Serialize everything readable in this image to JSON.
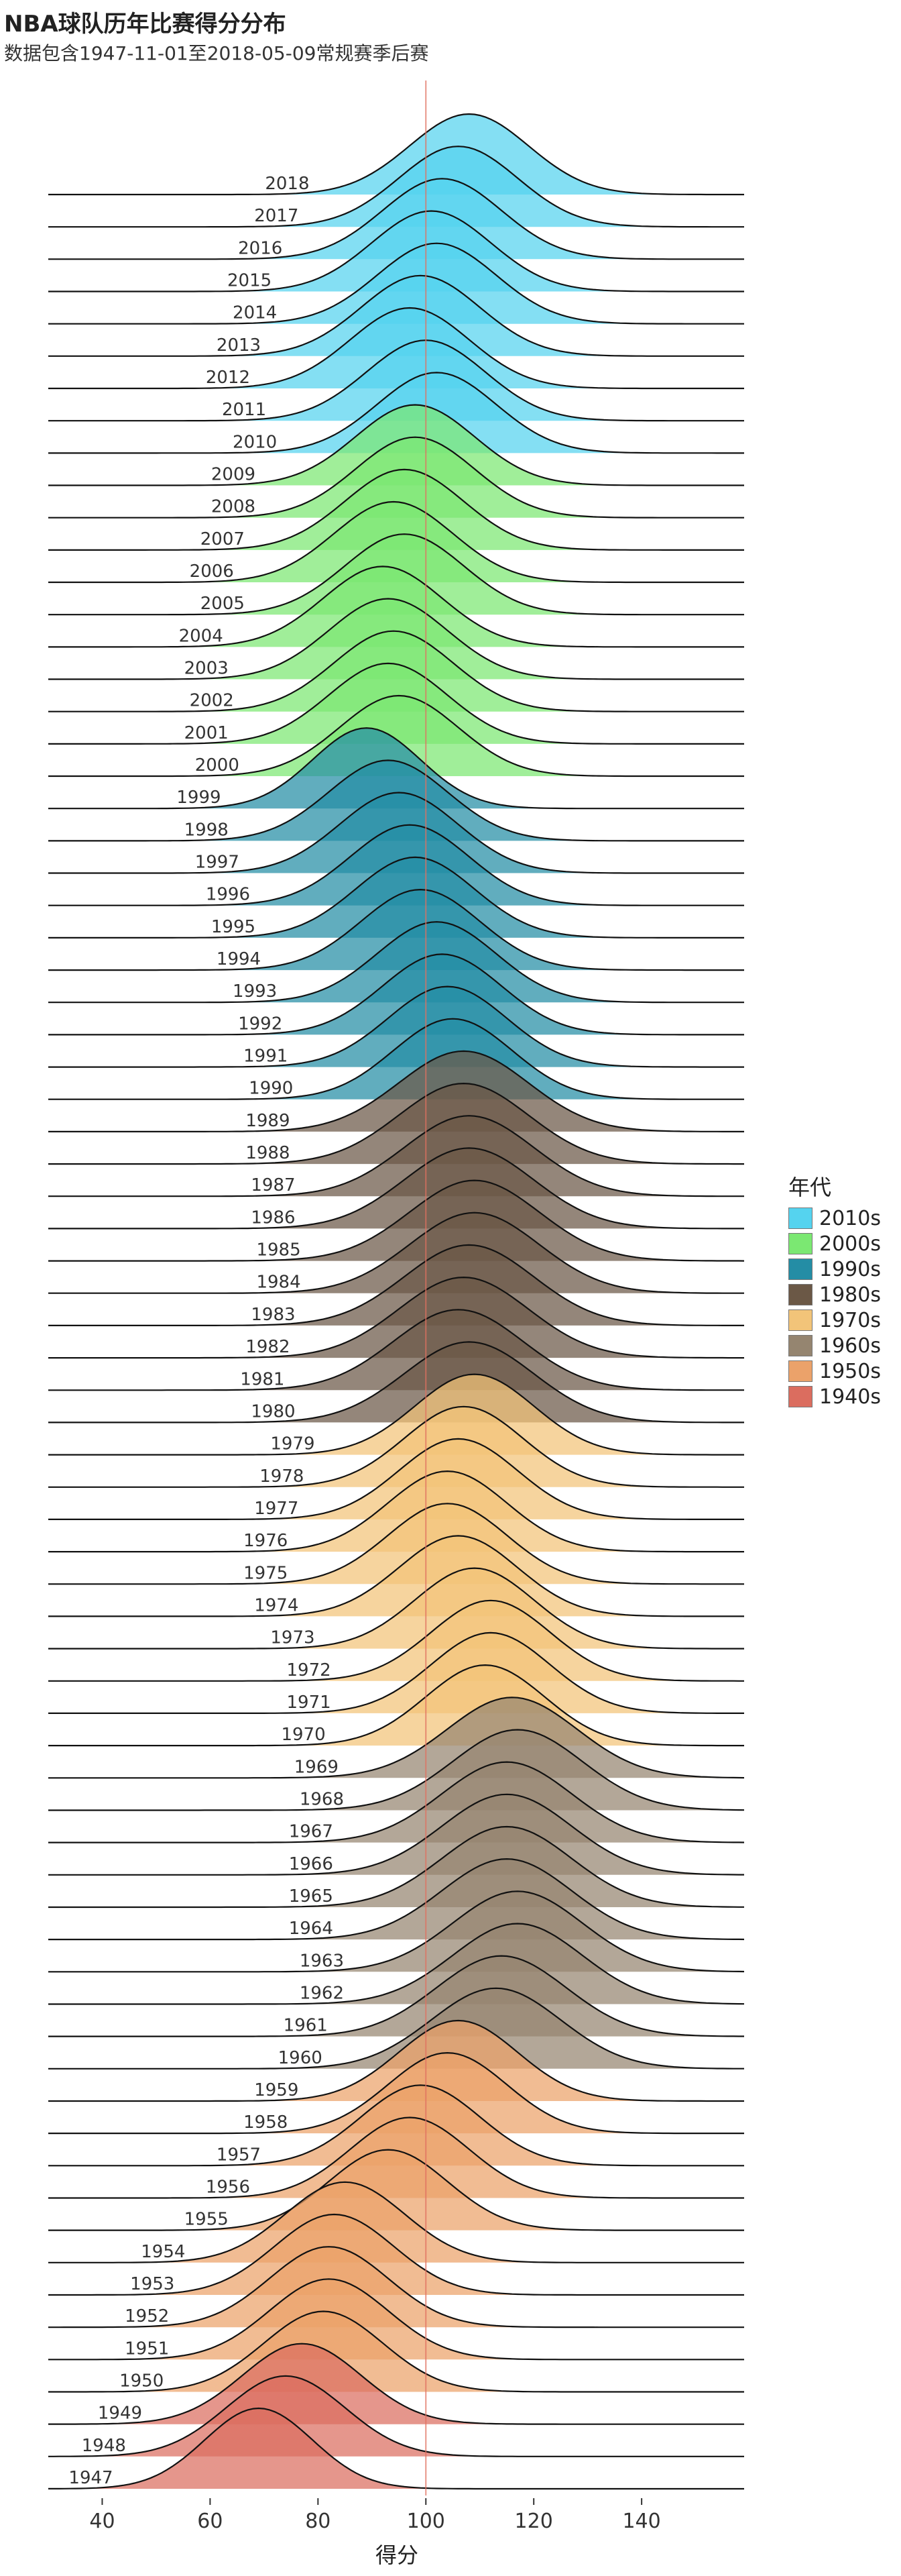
{
  "title": "NBA球队历年比赛得分分布",
  "subtitle": "数据包含1947-11-01至2018-05-09常规赛季后赛",
  "chart_data": {
    "type": "area",
    "subtype": "ridgeline",
    "xlabel": "得分",
    "xlim": [
      30,
      159
    ],
    "x_ticks": [
      40,
      60,
      80,
      100,
      120,
      140
    ],
    "reference_line": 100,
    "legend": {
      "title": "年代",
      "placement": "right",
      "entries": [
        {
          "label": "2010s",
          "color": "#55D3EF"
        },
        {
          "label": "2000s",
          "color": "#7BE872"
        },
        {
          "label": "1990s",
          "color": "#248DA5"
        },
        {
          "label": "1980s",
          "color": "#6B5846"
        },
        {
          "label": "1970s",
          "color": "#F2C479"
        },
        {
          "label": "1960s",
          "color": "#958570"
        },
        {
          "label": "1950s",
          "color": "#EBA26A"
        },
        {
          "label": "1940s",
          "color": "#DB6D5F"
        }
      ]
    },
    "series": [
      {
        "name": "2018",
        "decade": "2010s",
        "mean": 108,
        "sd": 11
      },
      {
        "name": "2017",
        "decade": "2010s",
        "mean": 106,
        "sd": 11
      },
      {
        "name": "2016",
        "decade": "2010s",
        "mean": 103,
        "sd": 11
      },
      {
        "name": "2015",
        "decade": "2010s",
        "mean": 101,
        "sd": 11
      },
      {
        "name": "2014",
        "decade": "2010s",
        "mean": 102,
        "sd": 11
      },
      {
        "name": "2013",
        "decade": "2010s",
        "mean": 99,
        "sd": 11
      },
      {
        "name": "2012",
        "decade": "2010s",
        "mean": 97,
        "sd": 11
      },
      {
        "name": "2011",
        "decade": "2010s",
        "mean": 100,
        "sd": 11
      },
      {
        "name": "2010",
        "decade": "2010s",
        "mean": 102,
        "sd": 11
      },
      {
        "name": "2009",
        "decade": "2000s",
        "mean": 98,
        "sd": 11
      },
      {
        "name": "2008",
        "decade": "2000s",
        "mean": 98,
        "sd": 11
      },
      {
        "name": "2007",
        "decade": "2000s",
        "mean": 96,
        "sd": 11
      },
      {
        "name": "2006",
        "decade": "2000s",
        "mean": 94,
        "sd": 11
      },
      {
        "name": "2005",
        "decade": "2000s",
        "mean": 96,
        "sd": 11
      },
      {
        "name": "2004",
        "decade": "2000s",
        "mean": 92,
        "sd": 11
      },
      {
        "name": "2003",
        "decade": "2000s",
        "mean": 93,
        "sd": 11
      },
      {
        "name": "2002",
        "decade": "2000s",
        "mean": 94,
        "sd": 11
      },
      {
        "name": "2001",
        "decade": "2000s",
        "mean": 93,
        "sd": 11
      },
      {
        "name": "2000",
        "decade": "2000s",
        "mean": 95,
        "sd": 11
      },
      {
        "name": "1999",
        "decade": "1990s",
        "mean": 89,
        "sd": 10
      },
      {
        "name": "1998",
        "decade": "1990s",
        "mean": 93,
        "sd": 11
      },
      {
        "name": "1997",
        "decade": "1990s",
        "mean": 95,
        "sd": 11
      },
      {
        "name": "1996",
        "decade": "1990s",
        "mean": 97,
        "sd": 11
      },
      {
        "name": "1995",
        "decade": "1990s",
        "mean": 98,
        "sd": 11
      },
      {
        "name": "1994",
        "decade": "1990s",
        "mean": 99,
        "sd": 11
      },
      {
        "name": "1993",
        "decade": "1990s",
        "mean": 102,
        "sd": 11
      },
      {
        "name": "1992",
        "decade": "1990s",
        "mean": 103,
        "sd": 11
      },
      {
        "name": "1991",
        "decade": "1990s",
        "mean": 104,
        "sd": 11
      },
      {
        "name": "1990",
        "decade": "1990s",
        "mean": 105,
        "sd": 11
      },
      {
        "name": "1989",
        "decade": "1980s",
        "mean": 107,
        "sd": 12
      },
      {
        "name": "1988",
        "decade": "1980s",
        "mean": 107,
        "sd": 12
      },
      {
        "name": "1987",
        "decade": "1980s",
        "mean": 108,
        "sd": 12
      },
      {
        "name": "1986",
        "decade": "1980s",
        "mean": 108,
        "sd": 12
      },
      {
        "name": "1985",
        "decade": "1980s",
        "mean": 109,
        "sd": 12
      },
      {
        "name": "1984",
        "decade": "1980s",
        "mean": 109,
        "sd": 12
      },
      {
        "name": "1983",
        "decade": "1980s",
        "mean": 108,
        "sd": 12
      },
      {
        "name": "1982",
        "decade": "1980s",
        "mean": 107,
        "sd": 12
      },
      {
        "name": "1981",
        "decade": "1980s",
        "mean": 106,
        "sd": 12
      },
      {
        "name": "1980",
        "decade": "1980s",
        "mean": 108,
        "sd": 12
      },
      {
        "name": "1979",
        "decade": "1970s",
        "mean": 109,
        "sd": 11
      },
      {
        "name": "1978",
        "decade": "1970s",
        "mean": 107,
        "sd": 11
      },
      {
        "name": "1977",
        "decade": "1970s",
        "mean": 106,
        "sd": 11
      },
      {
        "name": "1976",
        "decade": "1970s",
        "mean": 104,
        "sd": 11
      },
      {
        "name": "1975",
        "decade": "1970s",
        "mean": 104,
        "sd": 11
      },
      {
        "name": "1974",
        "decade": "1970s",
        "mean": 106,
        "sd": 11
      },
      {
        "name": "1973",
        "decade": "1970s",
        "mean": 109,
        "sd": 11
      },
      {
        "name": "1972",
        "decade": "1970s",
        "mean": 112,
        "sd": 11
      },
      {
        "name": "1971",
        "decade": "1970s",
        "mean": 112,
        "sd": 11
      },
      {
        "name": "1970",
        "decade": "1970s",
        "mean": 111,
        "sd": 11
      },
      {
        "name": "1969",
        "decade": "1960s",
        "mean": 116,
        "sd": 12
      },
      {
        "name": "1968",
        "decade": "1960s",
        "mean": 117,
        "sd": 12
      },
      {
        "name": "1967",
        "decade": "1960s",
        "mean": 115,
        "sd": 12
      },
      {
        "name": "1966",
        "decade": "1960s",
        "mean": 115,
        "sd": 12
      },
      {
        "name": "1965",
        "decade": "1960s",
        "mean": 115,
        "sd": 12
      },
      {
        "name": "1964",
        "decade": "1960s",
        "mean": 115,
        "sd": 12
      },
      {
        "name": "1963",
        "decade": "1960s",
        "mean": 117,
        "sd": 12
      },
      {
        "name": "1962",
        "decade": "1960s",
        "mean": 117,
        "sd": 12
      },
      {
        "name": "1961",
        "decade": "1960s",
        "mean": 114,
        "sd": 12
      },
      {
        "name": "1960",
        "decade": "1960s",
        "mean": 113,
        "sd": 12
      },
      {
        "name": "1959",
        "decade": "1950s",
        "mean": 106,
        "sd": 11
      },
      {
        "name": "1958",
        "decade": "1950s",
        "mean": 104,
        "sd": 11
      },
      {
        "name": "1957",
        "decade": "1950s",
        "mean": 99,
        "sd": 11
      },
      {
        "name": "1956",
        "decade": "1950s",
        "mean": 97,
        "sd": 11
      },
      {
        "name": "1955",
        "decade": "1950s",
        "mean": 93,
        "sd": 11
      },
      {
        "name": "1954",
        "decade": "1950s",
        "mean": 85,
        "sd": 11
      },
      {
        "name": "1953",
        "decade": "1950s",
        "mean": 83,
        "sd": 11
      },
      {
        "name": "1952",
        "decade": "1950s",
        "mean": 82,
        "sd": 11
      },
      {
        "name": "1951",
        "decade": "1950s",
        "mean": 82,
        "sd": 11
      },
      {
        "name": "1950",
        "decade": "1950s",
        "mean": 81,
        "sd": 11
      },
      {
        "name": "1949",
        "decade": "1940s",
        "mean": 77,
        "sd": 11
      },
      {
        "name": "1948",
        "decade": "1940s",
        "mean": 74,
        "sd": 11
      },
      {
        "name": "1947",
        "decade": "1940s",
        "mean": 69,
        "sd": 10
      }
    ]
  }
}
